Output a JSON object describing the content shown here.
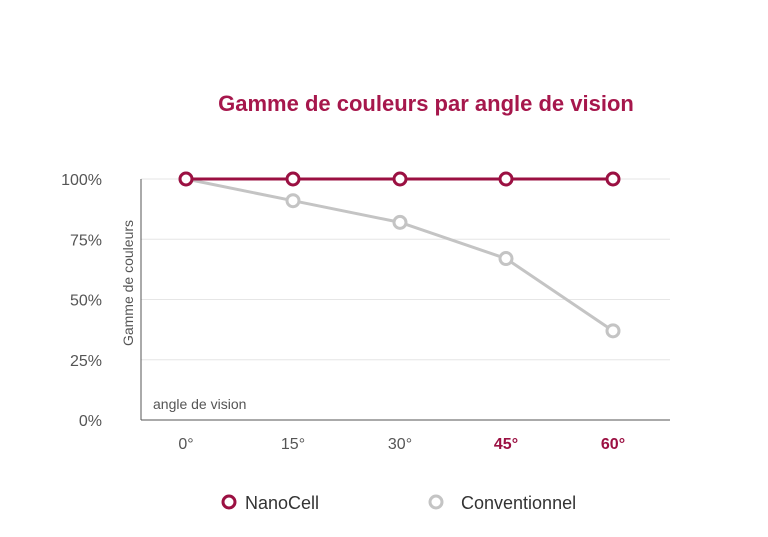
{
  "colors": {
    "nanocell": "#9b1042",
    "conventionnel": "#c4c4c4",
    "title": "#a6174c",
    "axis": "#555555",
    "grid": "#e6e6e6",
    "text": "#555555"
  },
  "legend": {
    "nanocell_label": "NanoCell",
    "conventionnel_label": "Conventionnel"
  },
  "chart_data": {
    "type": "line",
    "title": "Gamme de couleurs par angle de vision",
    "xlabel": "angle de vision",
    "ylabel": "Gamme de couleurs",
    "categories": [
      "0°",
      "15°",
      "30°",
      "45°",
      "60°"
    ],
    "highlighted_categories": [
      "45°",
      "60°"
    ],
    "y_ticks": [
      0,
      25,
      50,
      75,
      100
    ],
    "y_tick_labels": [
      "0%",
      "25%",
      "50%",
      "75%",
      "100%"
    ],
    "ylim": [
      0,
      100
    ],
    "grid": true,
    "series": [
      {
        "name": "NanoCell",
        "values": [
          100,
          100,
          100,
          100,
          100
        ]
      },
      {
        "name": "Conventionnel",
        "values": [
          100,
          91,
          82,
          67,
          37
        ]
      }
    ]
  }
}
